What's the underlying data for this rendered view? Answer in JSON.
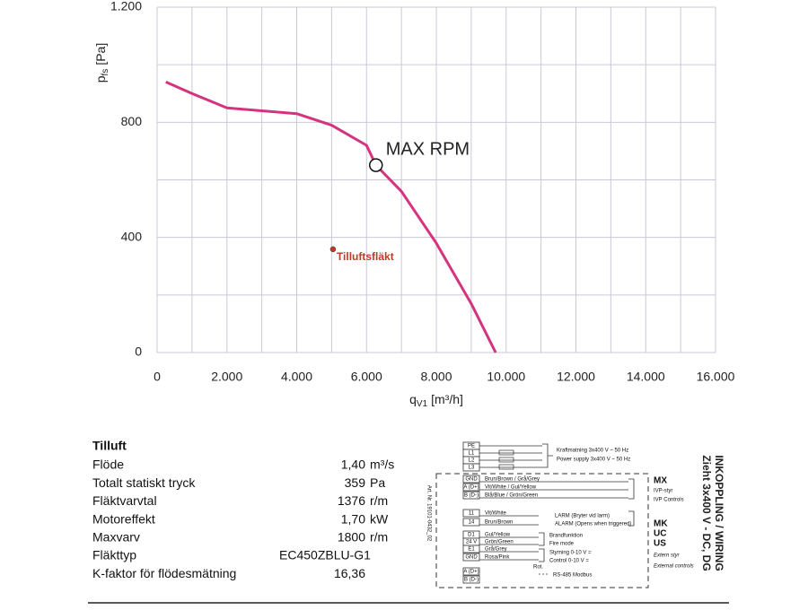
{
  "chart_data": {
    "type": "line",
    "xlim": [
      0,
      16000
    ],
    "ylim": [
      0,
      1200
    ],
    "xticks": [
      0,
      {
        "value": 2000,
        "label": "2.000"
      },
      {
        "value": 4000,
        "label": "4.000"
      },
      {
        "value": 6000,
        "label": "6.000"
      },
      {
        "value": 8000,
        "label": "8.000"
      },
      {
        "value": 10000,
        "label": "10.000"
      },
      {
        "value": 12000,
        "label": "12.000"
      },
      {
        "value": 14000,
        "label": "14.000"
      },
      {
        "value": 16000,
        "label": "16.000"
      }
    ],
    "yticks": [
      0,
      400,
      800,
      {
        "value": 1200,
        "label": "1.200"
      }
    ],
    "x_minor_grid": [
      1000,
      3000,
      5000,
      7000,
      9000,
      11000,
      13000,
      15000
    ],
    "y_minor_grid": [
      200,
      600,
      1000
    ],
    "grid": true,
    "x_label": {
      "symbol": "q",
      "subscript": "V1",
      "unit": "[m³/h]"
    },
    "y_label": {
      "symbol": "p",
      "subscript": "fs",
      "unit": "[Pa]"
    },
    "series": [
      {
        "color": "#d6337f",
        "x": [
          250,
          1000,
          2000,
          3000,
          4000,
          5000,
          6000,
          6270,
          7000,
          8000,
          9000,
          9700
        ],
        "values": [
          940,
          900,
          850,
          840,
          830,
          790,
          720,
          651,
          560,
          380,
          170,
          0
        ]
      }
    ],
    "max_point": {
      "label": "MAX RPM",
      "x": 6270,
      "y": 651
    },
    "operating_point": {
      "label": "Tilluftsfläkt",
      "x": 5040,
      "y": 359,
      "color": "#c0392b"
    }
  },
  "table": {
    "title": "Tilluft",
    "rows": [
      [
        "Flöde",
        "1,40",
        "m³/s"
      ],
      [
        "Totalt statiskt tryck",
        "359",
        "Pa"
      ],
      [
        "Fläktvarvtal",
        "1376",
        "r/m"
      ],
      [
        "Motoreffekt",
        "1,70",
        "kW"
      ],
      [
        "Maxvarv",
        "1800",
        "r/m"
      ],
      [
        "Fläkttyp",
        "EC450ZBLU-G1"
      ],
      [
        "K-faktor för flödesmätning",
        "16,36"
      ]
    ]
  },
  "wiring": {
    "title": "INKOPPLING / WIRING",
    "subtitle": "Zieht 3x400 V - DC, DG",
    "article_no": "Art. Nr. 19101-0432_02",
    "terminals": [
      "PE",
      "L1",
      "L2",
      "L3",
      "GND",
      "A (D+)",
      "B (D-)",
      "11",
      "14",
      "D1",
      "24 V",
      "E1",
      "GND",
      "A (D+)",
      "B (D-)"
    ],
    "wires": [
      "Brun/Brown / Grå/Grey",
      "Vit/White / Gul/Yellow",
      "Blå/Blue / Grön/Green",
      "Vit/White",
      "Brun/Brown",
      "Gul/Yellow",
      "Grön/Green",
      "Grå/Grey",
      "Rosa/Pink"
    ],
    "power": [
      "Kraftmatning 3x400 V ~ 50 Hz",
      "Power supply 3x400 V ~ 50 Hz"
    ],
    "mx": [
      "MX",
      "IVP-styr",
      "IVP Controls"
    ],
    "alarm": [
      "LARM (Bryter vid larm)",
      "ALARM (Opens when triggered)"
    ],
    "fire": [
      "Brandfunktion",
      "Fire mode"
    ],
    "control": [
      "Styrning 0-10 V =",
      "Control 0-10 V ="
    ],
    "rot": "Rot.",
    "modbus": "RS-485 Modbus",
    "codes": [
      "MK",
      "UC",
      "US"
    ],
    "external": [
      "Extern styr",
      "External controls"
    ]
  }
}
